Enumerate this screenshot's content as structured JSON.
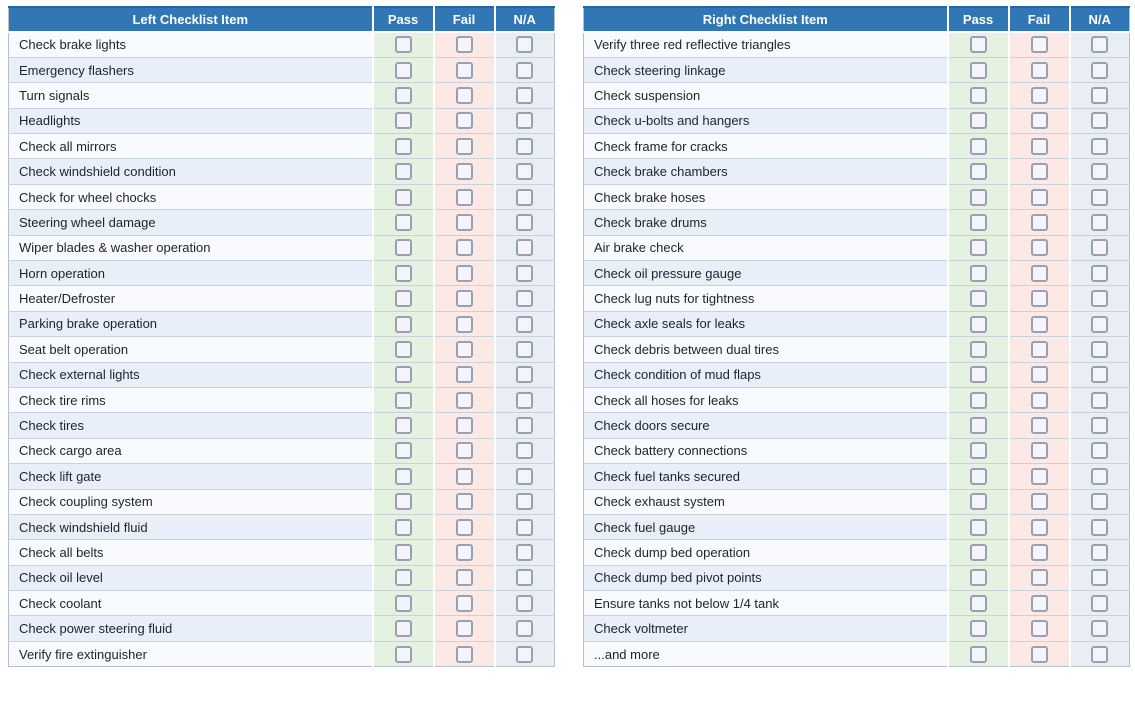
{
  "columns": {
    "pass": "Pass",
    "fail": "Fail",
    "na": "N/A"
  },
  "checkbox_state": "unchecked",
  "colors": {
    "header_bg": "#3176b5",
    "header_top_border": "#2365a6",
    "header_text": "#ffffff",
    "pass_column_bg": "#e6f2e1",
    "fail_column_bg": "#fce9e5",
    "na_column_bg": "#e9eef5",
    "row_odd_bg": "#f8fafd",
    "row_even_bg": "#e9eff8",
    "outer_border": "#b6bfca",
    "row_line": "#c9d2dc",
    "checkbox_border": "#98a1b0",
    "checkbox_fill": "#f5f4fc",
    "text": "#1c232e"
  },
  "tables": [
    {
      "name": "left",
      "header": {
        "item": "Left Checklist Item",
        "pass": "Pass",
        "fail": "Fail",
        "na": "N/A"
      },
      "items": [
        "Check brake lights",
        "Emergency flashers",
        "Turn signals",
        "Headlights",
        "Check all mirrors",
        "Check windshield condition",
        "Check for wheel chocks",
        "Steering wheel damage",
        "Wiper blades & washer operation",
        "Horn operation",
        "Heater/Defroster",
        "Parking brake operation",
        "Seat belt operation",
        "Check external lights",
        "Check tire rims",
        "Check tires",
        "Check cargo area",
        "Check lift gate",
        "Check coupling system",
        "Check windshield fluid",
        "Check all belts",
        "Check oil level",
        "Check coolant",
        "Check power steering fluid",
        "Verify fire extinguisher"
      ]
    },
    {
      "name": "right",
      "header": {
        "item": "Right Checklist Item",
        "pass": "Pass",
        "fail": "Fail",
        "na": "N/A"
      },
      "items": [
        "Verify three red reflective triangles",
        "Check steering linkage",
        "Check suspension",
        "Check u-bolts and hangers",
        "Check frame for cracks",
        "Check brake chambers",
        "Check brake hoses",
        "Check brake drums",
        "Air brake check",
        "Check oil pressure gauge",
        "Check lug nuts for tightness",
        "Check axle seals for leaks",
        "Check debris between dual tires",
        "Check condition of mud flaps",
        "Check all hoses for leaks",
        "Check doors secure",
        "Check battery connections",
        "Check fuel tanks secured",
        "Check exhaust system",
        "Check fuel gauge",
        "Check dump bed operation",
        "Check dump bed pivot points",
        "Ensure tanks not below 1/4 tank",
        "Check voltmeter",
        "...and more"
      ]
    }
  ]
}
